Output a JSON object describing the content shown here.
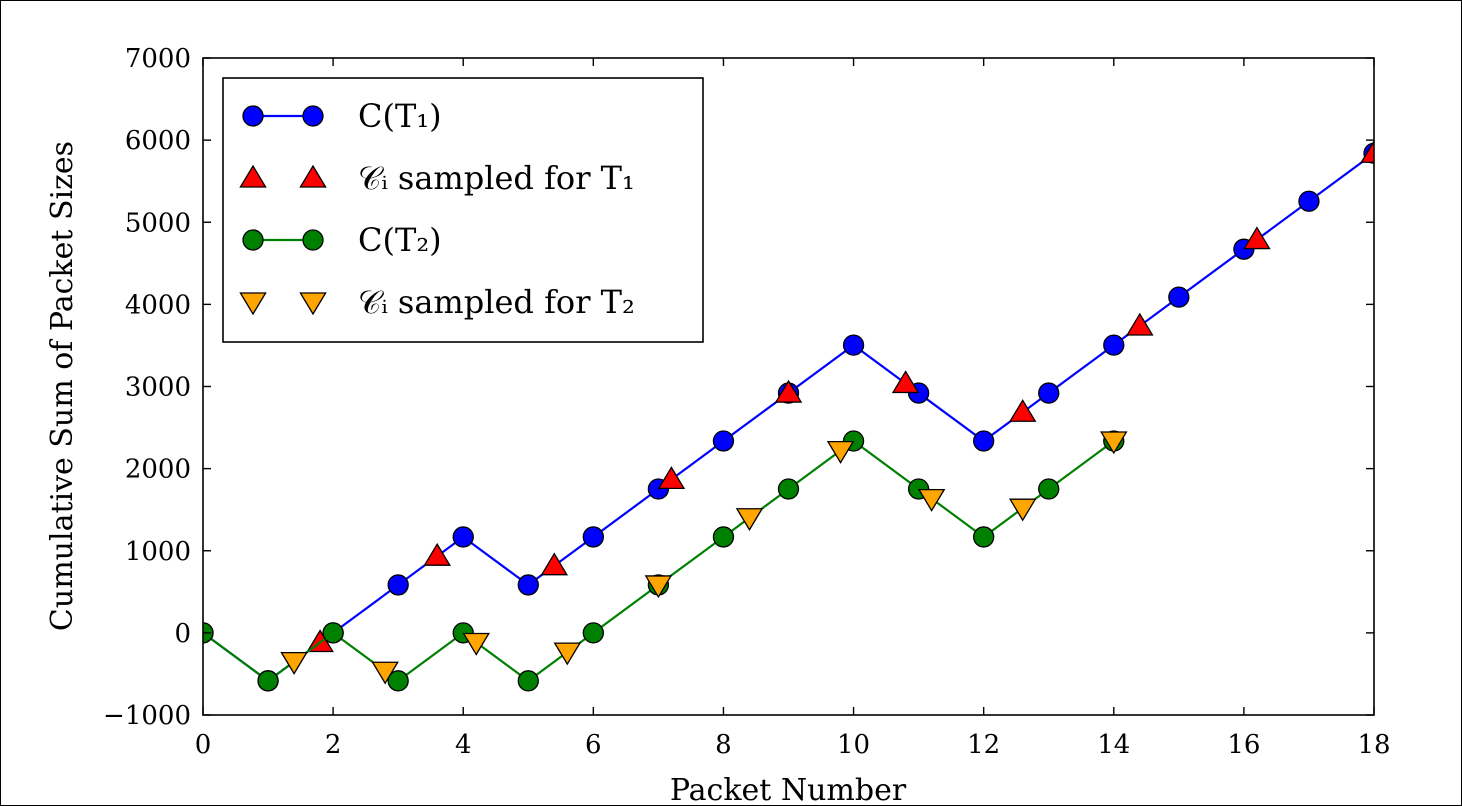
{
  "chart_data": {
    "type": "line",
    "title": "",
    "xlabel": "Packet Number",
    "ylabel": "Cumulative Sum of Packet Sizes",
    "xlim": [
      0,
      18
    ],
    "ylim": [
      -1000,
      7000
    ],
    "xticks": [
      "0",
      "2",
      "4",
      "6",
      "8",
      "10",
      "12",
      "14",
      "16",
      "18"
    ],
    "yticks": [
      "−1000",
      "0",
      "1000",
      "2000",
      "3000",
      "4000",
      "5000",
      "6000",
      "7000"
    ],
    "grid": false,
    "legend_position": "top-left",
    "series": [
      {
        "name": "C(T₁)",
        "kind": "line-circle",
        "color": "#0000ff",
        "x": [
          0,
          1,
          2,
          3,
          4,
          5,
          6,
          7,
          8,
          9,
          10,
          11,
          12,
          13,
          14,
          15,
          16,
          17,
          18
        ],
        "y": [
          0,
          -584,
          0,
          584,
          1168,
          584,
          1168,
          1752,
          2336,
          2920,
          3504,
          2920,
          2336,
          2920,
          3504,
          4088,
          4672,
          5256,
          5840
        ]
      },
      {
        "name": "𝒞ᵢ sampled for T₁",
        "kind": "triangle-up",
        "color": "#ff0000",
        "x": [
          1.8,
          3.6,
          5.4,
          7.2,
          9.0,
          10.8,
          12.6,
          14.4,
          16.2,
          18.0
        ],
        "y": [
          -117,
          934,
          818,
          1869,
          2920,
          3037,
          2686,
          3737,
          4789,
          5840
        ]
      },
      {
        "name": "C(T₂)",
        "kind": "line-circle",
        "color": "#008000",
        "x": [
          0,
          1,
          2,
          3,
          4,
          5,
          6,
          7,
          8,
          9,
          10,
          11,
          12,
          13,
          14
        ],
        "y": [
          0,
          -584,
          0,
          -584,
          0,
          -584,
          0,
          584,
          1168,
          1752,
          2336,
          1752,
          1168,
          1752,
          2336
        ]
      },
      {
        "name": "𝒞ᵢ sampled for T₂",
        "kind": "triangle-down",
        "color": "#ffa500",
        "x": [
          1.4,
          2.8,
          4.2,
          5.6,
          7.0,
          8.4,
          9.8,
          11.2,
          12.6,
          14.0
        ],
        "y": [
          -350,
          -467,
          -117,
          -234,
          584,
          1402,
          2219,
          1635,
          1518,
          2336
        ]
      }
    ]
  }
}
